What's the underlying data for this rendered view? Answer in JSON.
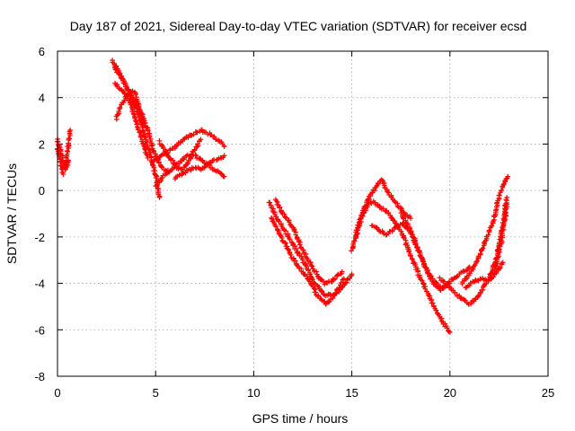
{
  "chart_data": {
    "type": "scatter",
    "title": "Day 187 of 2021, Sidereal Day-to-day VTEC variation (SDTVAR) for receiver ecsd",
    "xlabel": "GPS time / hours",
    "ylabel": "SDTVAR / TECUs",
    "xlim": [
      0,
      25
    ],
    "ylim": [
      -8,
      6
    ],
    "xticks": [
      "0",
      "5",
      "10",
      "15",
      "20",
      "25"
    ],
    "yticks": [
      "-8",
      "-6",
      "-4",
      "-2",
      "0",
      "2",
      "4",
      "6"
    ],
    "grid": true,
    "marker": "+",
    "series_color": "#ff0000",
    "segments": [
      {
        "name": "satellite-track",
        "points": [
          [
            0.0,
            1.8
          ],
          [
            0.1,
            1.5
          ],
          [
            0.2,
            1.0
          ],
          [
            0.3,
            0.7
          ]
        ]
      },
      {
        "name": "satellite-track",
        "points": [
          [
            0.0,
            2.2
          ],
          [
            0.1,
            1.9
          ],
          [
            0.2,
            1.6
          ],
          [
            0.3,
            1.2
          ],
          [
            0.4,
            0.9
          ]
        ]
      },
      {
        "name": "satellite-track",
        "points": [
          [
            0.4,
            1.0
          ],
          [
            0.5,
            1.6
          ],
          [
            0.6,
            2.2
          ],
          [
            0.65,
            2.6
          ]
        ]
      },
      {
        "name": "satellite-track",
        "points": [
          [
            0.5,
            1.0
          ],
          [
            0.55,
            1.3
          ]
        ]
      },
      {
        "name": "satellite-track",
        "points": [
          [
            2.8,
            5.6
          ],
          [
            3.1,
            5.2
          ],
          [
            3.5,
            4.5
          ],
          [
            3.9,
            3.9
          ],
          [
            4.3,
            3.3
          ],
          [
            4.6,
            2.6
          ],
          [
            4.9,
            1.7
          ],
          [
            5.3,
            1.0
          ],
          [
            5.7,
            0.8
          ]
        ]
      },
      {
        "name": "satellite-track",
        "points": [
          [
            2.9,
            5.3
          ],
          [
            3.3,
            4.8
          ],
          [
            3.7,
            4.1
          ],
          [
            4.1,
            3.4
          ],
          [
            4.4,
            2.5
          ],
          [
            4.7,
            1.6
          ],
          [
            5.0,
            0.7
          ],
          [
            5.2,
            -0.3
          ]
        ]
      },
      {
        "name": "satellite-track",
        "points": [
          [
            2.9,
            4.6
          ],
          [
            3.3,
            4.3
          ],
          [
            3.7,
            3.8
          ],
          [
            4.0,
            3.0
          ],
          [
            4.3,
            2.2
          ],
          [
            4.6,
            1.4
          ]
        ]
      },
      {
        "name": "satellite-track",
        "points": [
          [
            3.0,
            3.1
          ],
          [
            3.2,
            3.6
          ],
          [
            3.5,
            4.0
          ],
          [
            3.8,
            4.3
          ],
          [
            4.0,
            4.1
          ],
          [
            4.2,
            3.5
          ],
          [
            4.4,
            2.8
          ]
        ]
      },
      {
        "name": "satellite-track",
        "points": [
          [
            4.8,
            1.2
          ],
          [
            5.1,
            1.4
          ],
          [
            5.5,
            1.6
          ],
          [
            5.9,
            1.8
          ],
          [
            6.3,
            2.1
          ],
          [
            6.8,
            2.4
          ],
          [
            7.3,
            2.6
          ],
          [
            7.8,
            2.4
          ],
          [
            8.3,
            2.1
          ],
          [
            8.5,
            1.9
          ]
        ]
      },
      {
        "name": "satellite-track",
        "points": [
          [
            5.2,
            2.1
          ],
          [
            5.5,
            1.7
          ],
          [
            5.8,
            1.3
          ],
          [
            6.1,
            1.0
          ],
          [
            6.4,
            0.9
          ],
          [
            6.7,
            1.3
          ],
          [
            7.0,
            1.8
          ],
          [
            7.3,
            2.2
          ]
        ]
      },
      {
        "name": "satellite-track",
        "points": [
          [
            5.0,
            0.2
          ],
          [
            5.4,
            0.6
          ],
          [
            5.8,
            0.9
          ],
          [
            6.2,
            1.2
          ],
          [
            6.6,
            1.5
          ],
          [
            7.0,
            1.5
          ],
          [
            7.5,
            1.2
          ],
          [
            8.0,
            0.9
          ],
          [
            8.5,
            0.6
          ]
        ]
      },
      {
        "name": "satellite-track",
        "points": [
          [
            6.0,
            0.5
          ],
          [
            6.5,
            0.8
          ],
          [
            7.0,
            1.0
          ],
          [
            7.3,
            0.9
          ],
          [
            7.6,
            1.1
          ],
          [
            8.0,
            1.3
          ],
          [
            8.5,
            1.5
          ]
        ]
      },
      {
        "name": "satellite-track",
        "points": [
          [
            10.8,
            -0.5
          ],
          [
            11.2,
            -1.2
          ],
          [
            11.7,
            -1.9
          ],
          [
            12.2,
            -2.6
          ],
          [
            12.7,
            -3.3
          ],
          [
            13.1,
            -4.0
          ],
          [
            13.6,
            -4.5
          ],
          [
            14.1,
            -4.5
          ],
          [
            14.6,
            -4.1
          ],
          [
            15.0,
            -3.6
          ]
        ]
      },
      {
        "name": "satellite-track",
        "points": [
          [
            10.9,
            -1.2
          ],
          [
            11.4,
            -2.0
          ],
          [
            11.9,
            -2.8
          ],
          [
            12.4,
            -3.4
          ],
          [
            12.9,
            -4.0
          ],
          [
            13.3,
            -4.6
          ],
          [
            13.7,
            -4.9
          ],
          [
            14.2,
            -4.4
          ],
          [
            14.6,
            -3.8
          ]
        ]
      },
      {
        "name": "satellite-track",
        "points": [
          [
            11.1,
            -0.4
          ],
          [
            11.5,
            -1.0
          ],
          [
            12.0,
            -1.6
          ],
          [
            12.4,
            -2.4
          ],
          [
            12.8,
            -3.0
          ],
          [
            13.2,
            -3.6
          ],
          [
            13.6,
            -4.0
          ],
          [
            14.0,
            -3.9
          ],
          [
            14.5,
            -3.5
          ]
        ]
      },
      {
        "name": "satellite-track",
        "points": [
          [
            15.0,
            -2.6
          ],
          [
            15.3,
            -1.6
          ],
          [
            15.6,
            -0.8
          ],
          [
            15.9,
            -0.3
          ],
          [
            16.2,
            0.1
          ],
          [
            16.5,
            0.5
          ],
          [
            16.8,
            0.0
          ],
          [
            17.2,
            -0.5
          ],
          [
            17.6,
            -0.9
          ],
          [
            18.0,
            -1.2
          ]
        ]
      },
      {
        "name": "satellite-track",
        "points": [
          [
            15.2,
            -2.0
          ],
          [
            15.5,
            -1.2
          ],
          [
            15.8,
            -0.6
          ],
          [
            16.1,
            -0.5
          ],
          [
            16.4,
            -0.7
          ],
          [
            16.8,
            -0.9
          ],
          [
            17.2,
            -1.4
          ],
          [
            17.6,
            -1.9
          ],
          [
            18.0,
            -2.8
          ],
          [
            18.4,
            -3.6
          ],
          [
            18.8,
            -4.3
          ],
          [
            19.2,
            -5.0
          ],
          [
            19.6,
            -5.6
          ],
          [
            20.0,
            -6.1
          ]
        ]
      },
      {
        "name": "satellite-track",
        "points": [
          [
            16.0,
            -1.5
          ],
          [
            16.4,
            -1.7
          ],
          [
            16.8,
            -1.9
          ],
          [
            17.2,
            -1.6
          ],
          [
            17.6,
            -1.4
          ],
          [
            18.0,
            -1.8
          ],
          [
            18.4,
            -2.6
          ],
          [
            18.8,
            -3.4
          ],
          [
            19.2,
            -3.9
          ],
          [
            19.6,
            -4.2
          ],
          [
            20.0,
            -4.0
          ]
        ]
      },
      {
        "name": "satellite-track",
        "points": [
          [
            17.5,
            -1.0
          ],
          [
            18.0,
            -1.7
          ],
          [
            18.5,
            -2.8
          ],
          [
            19.0,
            -3.8
          ],
          [
            19.5,
            -4.3
          ],
          [
            20.0,
            -3.9
          ],
          [
            20.5,
            -3.6
          ],
          [
            21.0,
            -3.3
          ]
        ]
      },
      {
        "name": "satellite-track",
        "points": [
          [
            19.5,
            -3.8
          ],
          [
            20.0,
            -4.2
          ],
          [
            20.5,
            -4.6
          ],
          [
            21.0,
            -4.9
          ],
          [
            21.5,
            -4.5
          ],
          [
            22.0,
            -3.8
          ],
          [
            22.4,
            -2.8
          ],
          [
            22.7,
            -1.5
          ],
          [
            22.9,
            -0.3
          ]
        ]
      },
      {
        "name": "satellite-track",
        "points": [
          [
            20.6,
            -4.0
          ],
          [
            21.0,
            -3.6
          ],
          [
            21.4,
            -3.0
          ],
          [
            21.8,
            -2.2
          ],
          [
            22.2,
            -1.3
          ],
          [
            22.5,
            -0.3
          ],
          [
            22.8,
            0.4
          ],
          [
            22.95,
            0.6
          ]
        ]
      },
      {
        "name": "satellite-track",
        "points": [
          [
            20.8,
            -4.2
          ],
          [
            21.2,
            -3.9
          ],
          [
            21.6,
            -3.8
          ],
          [
            22.0,
            -3.9
          ],
          [
            22.4,
            -3.5
          ],
          [
            22.7,
            -3.1
          ]
        ]
      },
      {
        "name": "satellite-track",
        "points": [
          [
            22.3,
            -3.4
          ],
          [
            22.6,
            -2.3
          ],
          [
            22.8,
            -1.2
          ],
          [
            22.9,
            -0.6
          ]
        ]
      }
    ]
  }
}
